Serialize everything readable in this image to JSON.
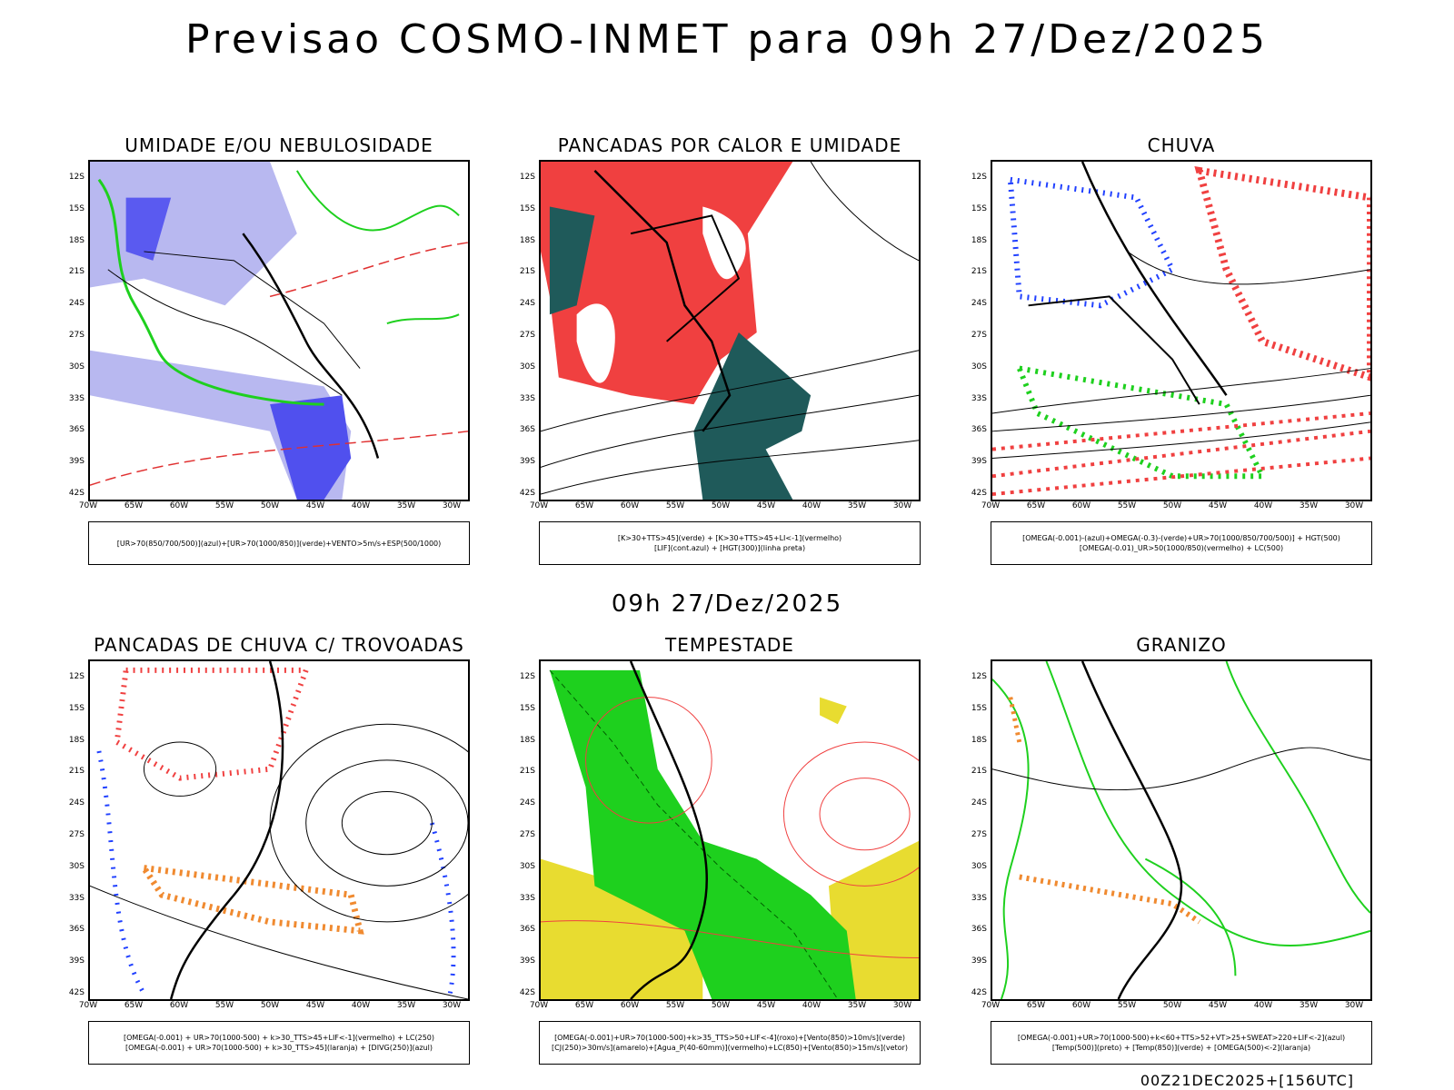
{
  "title": "Previsao COSMO-INMET  para 09h 27/Dez/2025",
  "subtitle": "09h 27/Dez/2025",
  "footer": "00Z21DEC2025+[156UTC]",
  "lat_labels": [
    "12S",
    "15S",
    "18S",
    "21S",
    "24S",
    "27S",
    "30S",
    "33S",
    "36S",
    "39S",
    "42S"
  ],
  "lon_labels": [
    "70W",
    "65W",
    "60W",
    "55W",
    "50W",
    "45W",
    "40W",
    "35W",
    "30W"
  ],
  "colors": {
    "red": "#f04040",
    "green": "#1ed01e",
    "blue": "#2040ff",
    "lavender": "#b8b8f0",
    "darkteal": "#1f5a5a",
    "yellow": "#e8dc30",
    "orange": "#f08a30"
  },
  "panels": [
    {
      "title": "UMIDADE E/OU NEBULOSIDADE",
      "legend": [
        "[UR>70(850/700/500)](azul)+[UR>70(1000/850)](verde)+VENTO>5m/s+ESP(500/1000)"
      ]
    },
    {
      "title": "PANCADAS POR CALOR E UMIDADE",
      "legend": [
        "[K>30+TTS>45](verde) + [K>30+TTS>45+LI<-1](vermelho)",
        "[LIF](cont.azul) + [HGT(300)](linha preta)"
      ]
    },
    {
      "title": "CHUVA",
      "legend": [
        "[OMEGA(-0.001)-(azul)+OMEGA(-0.3)-(verde)+UR>70(1000/850/700/500)] + HGT(500)",
        "[OMEGA(-0.01)_UR>50(1000/850)(vermelho) + LC(500)"
      ]
    },
    {
      "title": "PANCADAS DE CHUVA C/ TROVOADAS",
      "legend": [
        "[OMEGA(-0.001) + UR>70(1000-500) + k>30_TTS>45+LIF<-1](vermelho) + LC(250)",
        "[OMEGA(-0.001) + UR>70(1000-500) + k>30_TTS>45](laranja) + [DIVG(250)](azul)"
      ]
    },
    {
      "title": "TEMPESTADE",
      "legend": [
        "[OMEGA(-0.001)+UR>70(1000-500)+k>35_TTS>50+LIF<-4](roxo)+[Vento(850)>10m/s](verde)",
        "[CJ(250)>30m/s](amarelo)+[Agua_P(40-60mm)](vermelho)+LC(850)+[Vento(850)>15m/s](vetor)"
      ]
    },
    {
      "title": "GRANIZO",
      "legend": [
        "[OMEGA(-0.001)+UR>70(1000-500)+k<60+TTS>52+VT>25+SWEAT>220+LIF<-2](azul)",
        "[Temp(500)](preto) + [Temp(850)](verde) + [OMEGA(500)<-2](laranja)"
      ]
    }
  ]
}
